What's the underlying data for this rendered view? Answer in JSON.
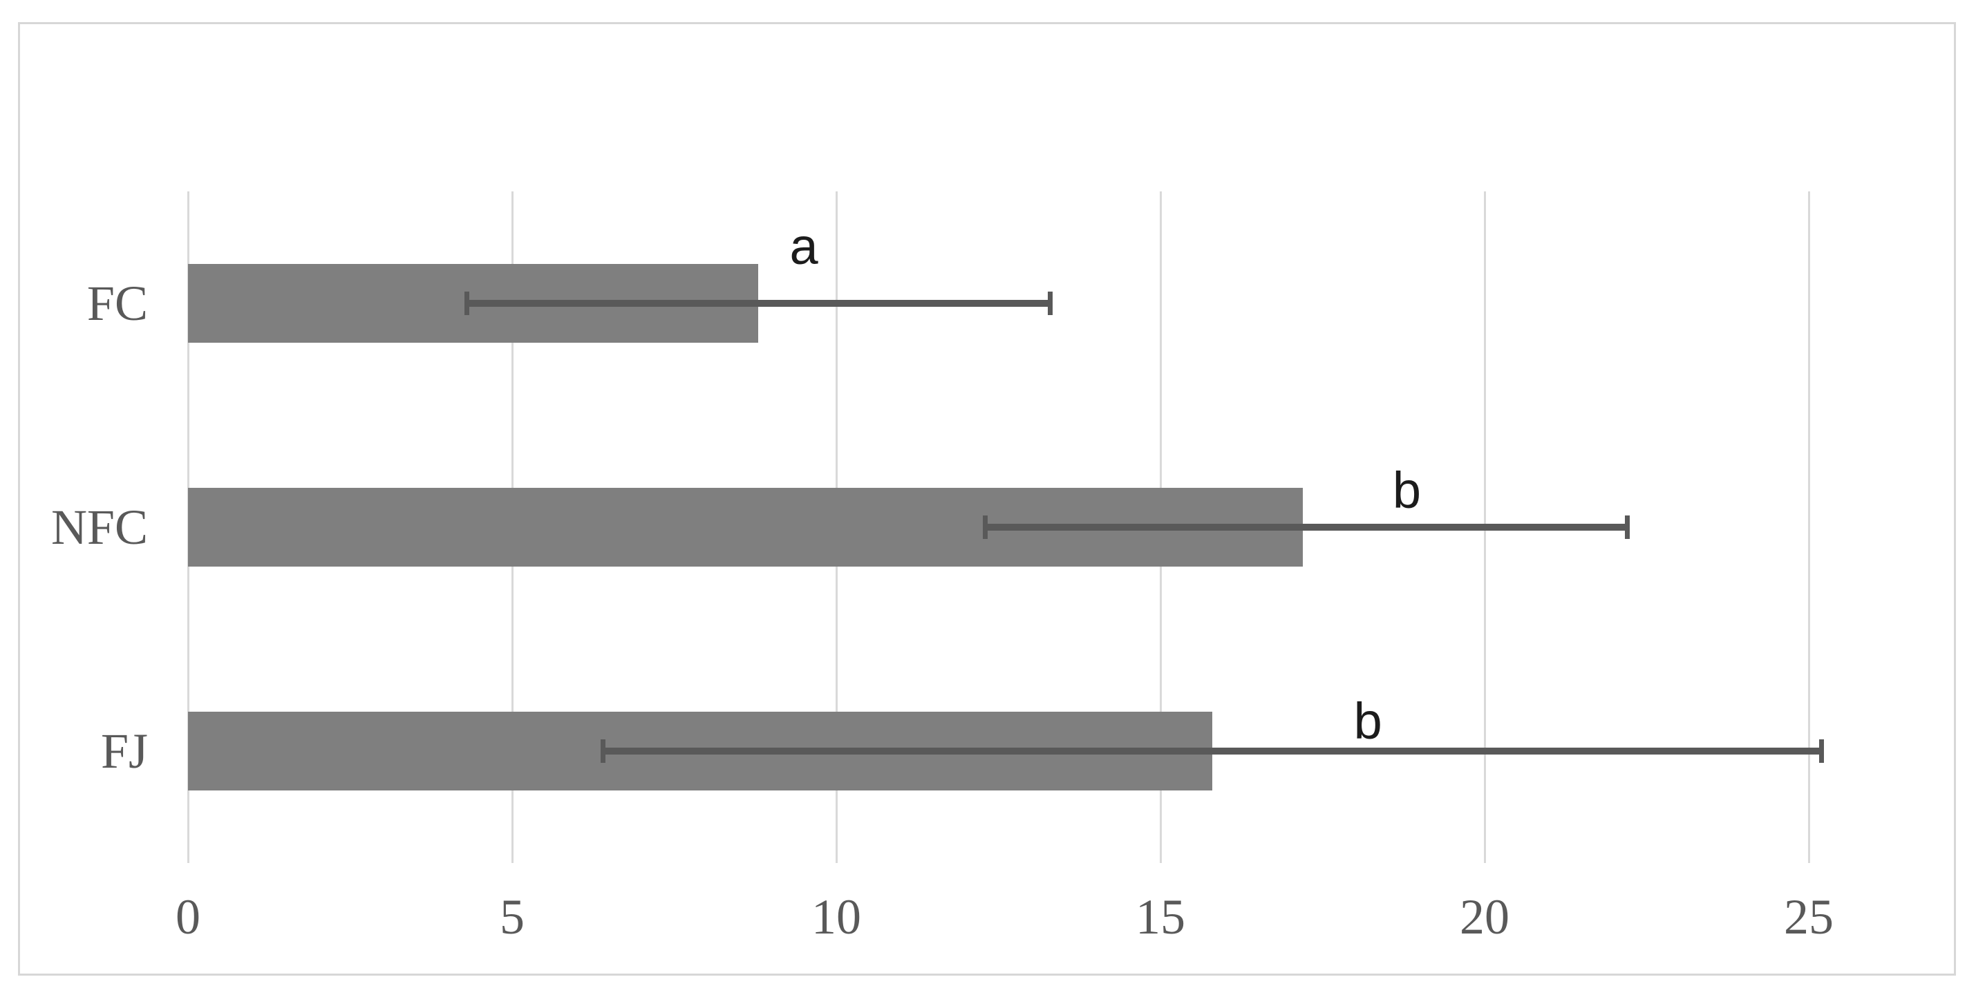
{
  "chart_data": {
    "type": "bar",
    "orientation": "horizontal",
    "title": "",
    "xlabel": "",
    "ylabel": "",
    "categories": [
      "FC",
      "NFC",
      "FJ"
    ],
    "values": [
      8.8,
      17.2,
      15.8
    ],
    "error_low": [
      4.3,
      12.3,
      6.4
    ],
    "error_high": [
      13.3,
      22.2,
      25.2
    ],
    "annotations": [
      {
        "category": "FC",
        "label": "a",
        "x_value": 9.5
      },
      {
        "category": "NFC",
        "label": "b",
        "x_value": 18.8
      },
      {
        "category": "FJ",
        "label": "b",
        "x_value": 18.2
      }
    ],
    "x_ticks": [
      "0",
      "5",
      "10",
      "15",
      "20",
      "25"
    ],
    "x_tick_values": [
      0,
      5,
      10,
      15,
      20,
      25
    ],
    "xlim": [
      0,
      26.5
    ],
    "grid": "vertical-major-only",
    "legend": "none",
    "colors": {
      "bar_fill": "#7f7f7f",
      "error_bar": "#595959",
      "gridline": "#d9d9d9",
      "chart_border": "#d7d7d7",
      "axis_text": "#595959",
      "annotation_text": "#1c1c1c",
      "background": "#ffffff"
    }
  }
}
